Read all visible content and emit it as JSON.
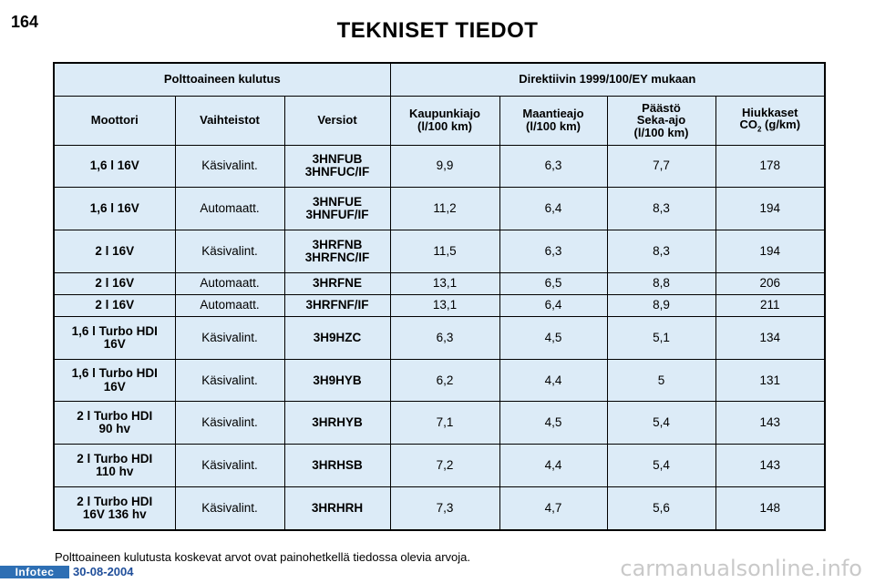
{
  "page": {
    "number": "164",
    "title": "TEKNISET TIEDOT",
    "footnote": "Polttoaineen kulutusta koskevat arvot ovat painohetkellä tiedossa olevia arvoja.",
    "logo_text": "Infotec",
    "date": "30-08-2004",
    "watermark": "carmanualsonline.info"
  },
  "table": {
    "group_left": "Polttoaineen kulutus",
    "group_right": "Direktiivin 1999/100/EY mukaan",
    "headers": {
      "engine": "Moottori",
      "gearbox": "Vaihteistot",
      "versions": "Versiot",
      "city": [
        "Kaupunkiajo",
        "(l/100 km)"
      ],
      "highway": [
        "Maantieajo",
        "(l/100 km)"
      ],
      "combined": [
        "Päästö",
        "Seka-ajo",
        "(l/100 km)"
      ],
      "co2_prefix": "Hiukkaset",
      "co2_co": "CO",
      "co2_sub": "2",
      "co2_unit": "(g/km)"
    },
    "rows": [
      {
        "engine": [
          "1,6 l 16V"
        ],
        "gearbox": "Käsivalint.",
        "versions": [
          "3HNFUB",
          "3HNFUC/IF"
        ],
        "city": "9,9",
        "highway": "6,3",
        "combined": "7,7",
        "co2": "178"
      },
      {
        "engine": [
          "1,6 l 16V"
        ],
        "gearbox": "Automaatt.",
        "versions": [
          "3HNFUE",
          "3HNFUF/IF"
        ],
        "city": "11,2",
        "highway": "6,4",
        "combined": "8,3",
        "co2": "194"
      },
      {
        "engine": [
          "2 l 16V"
        ],
        "gearbox": "Käsivalint.",
        "versions": [
          "3HRFNB",
          "3HRFNC/IF"
        ],
        "city": "11,5",
        "highway": "6,3",
        "combined": "8,3",
        "co2": "194"
      },
      {
        "engine": [
          "2 l 16V"
        ],
        "gearbox": "Automaatt.",
        "versions": [
          "3HRFNE"
        ],
        "city": "13,1",
        "highway": "6,5",
        "combined": "8,8",
        "co2": "206"
      },
      {
        "engine": [
          "2 l 16V"
        ],
        "gearbox": "Automaatt.",
        "versions": [
          "3HRFNF/IF"
        ],
        "city": "13,1",
        "highway": "6,4",
        "combined": "8,9",
        "co2": "211"
      },
      {
        "engine": [
          "1,6 l Turbo HDI",
          "16V"
        ],
        "gearbox": "Käsivalint.",
        "versions": [
          "3H9HZC"
        ],
        "city": "6,3",
        "highway": "4,5",
        "combined": "5,1",
        "co2": "134"
      },
      {
        "engine": [
          "1,6 l Turbo HDI",
          "16V"
        ],
        "gearbox": "Käsivalint.",
        "versions": [
          "3H9HYB"
        ],
        "city": "6,2",
        "highway": "4,4",
        "combined": "5",
        "co2": "131"
      },
      {
        "engine": [
          "2 l Turbo HDI",
          "90 hv"
        ],
        "gearbox": "Käsivalint.",
        "versions": [
          "3HRHYB"
        ],
        "city": "7,1",
        "highway": "4,5",
        "combined": "5,4",
        "co2": "143"
      },
      {
        "engine": [
          "2 l Turbo HDI",
          "110 hv"
        ],
        "gearbox": "Käsivalint.",
        "versions": [
          "3HRHSB"
        ],
        "city": "7,2",
        "highway": "4,4",
        "combined": "5,4",
        "co2": "143"
      },
      {
        "engine": [
          "2 l Turbo HDI",
          "16V 136 hv"
        ],
        "gearbox": "Käsivalint.",
        "versions": [
          "3HRHRH"
        ],
        "city": "7,3",
        "highway": "4,7",
        "combined": "5,6",
        "co2": "148"
      }
    ]
  }
}
